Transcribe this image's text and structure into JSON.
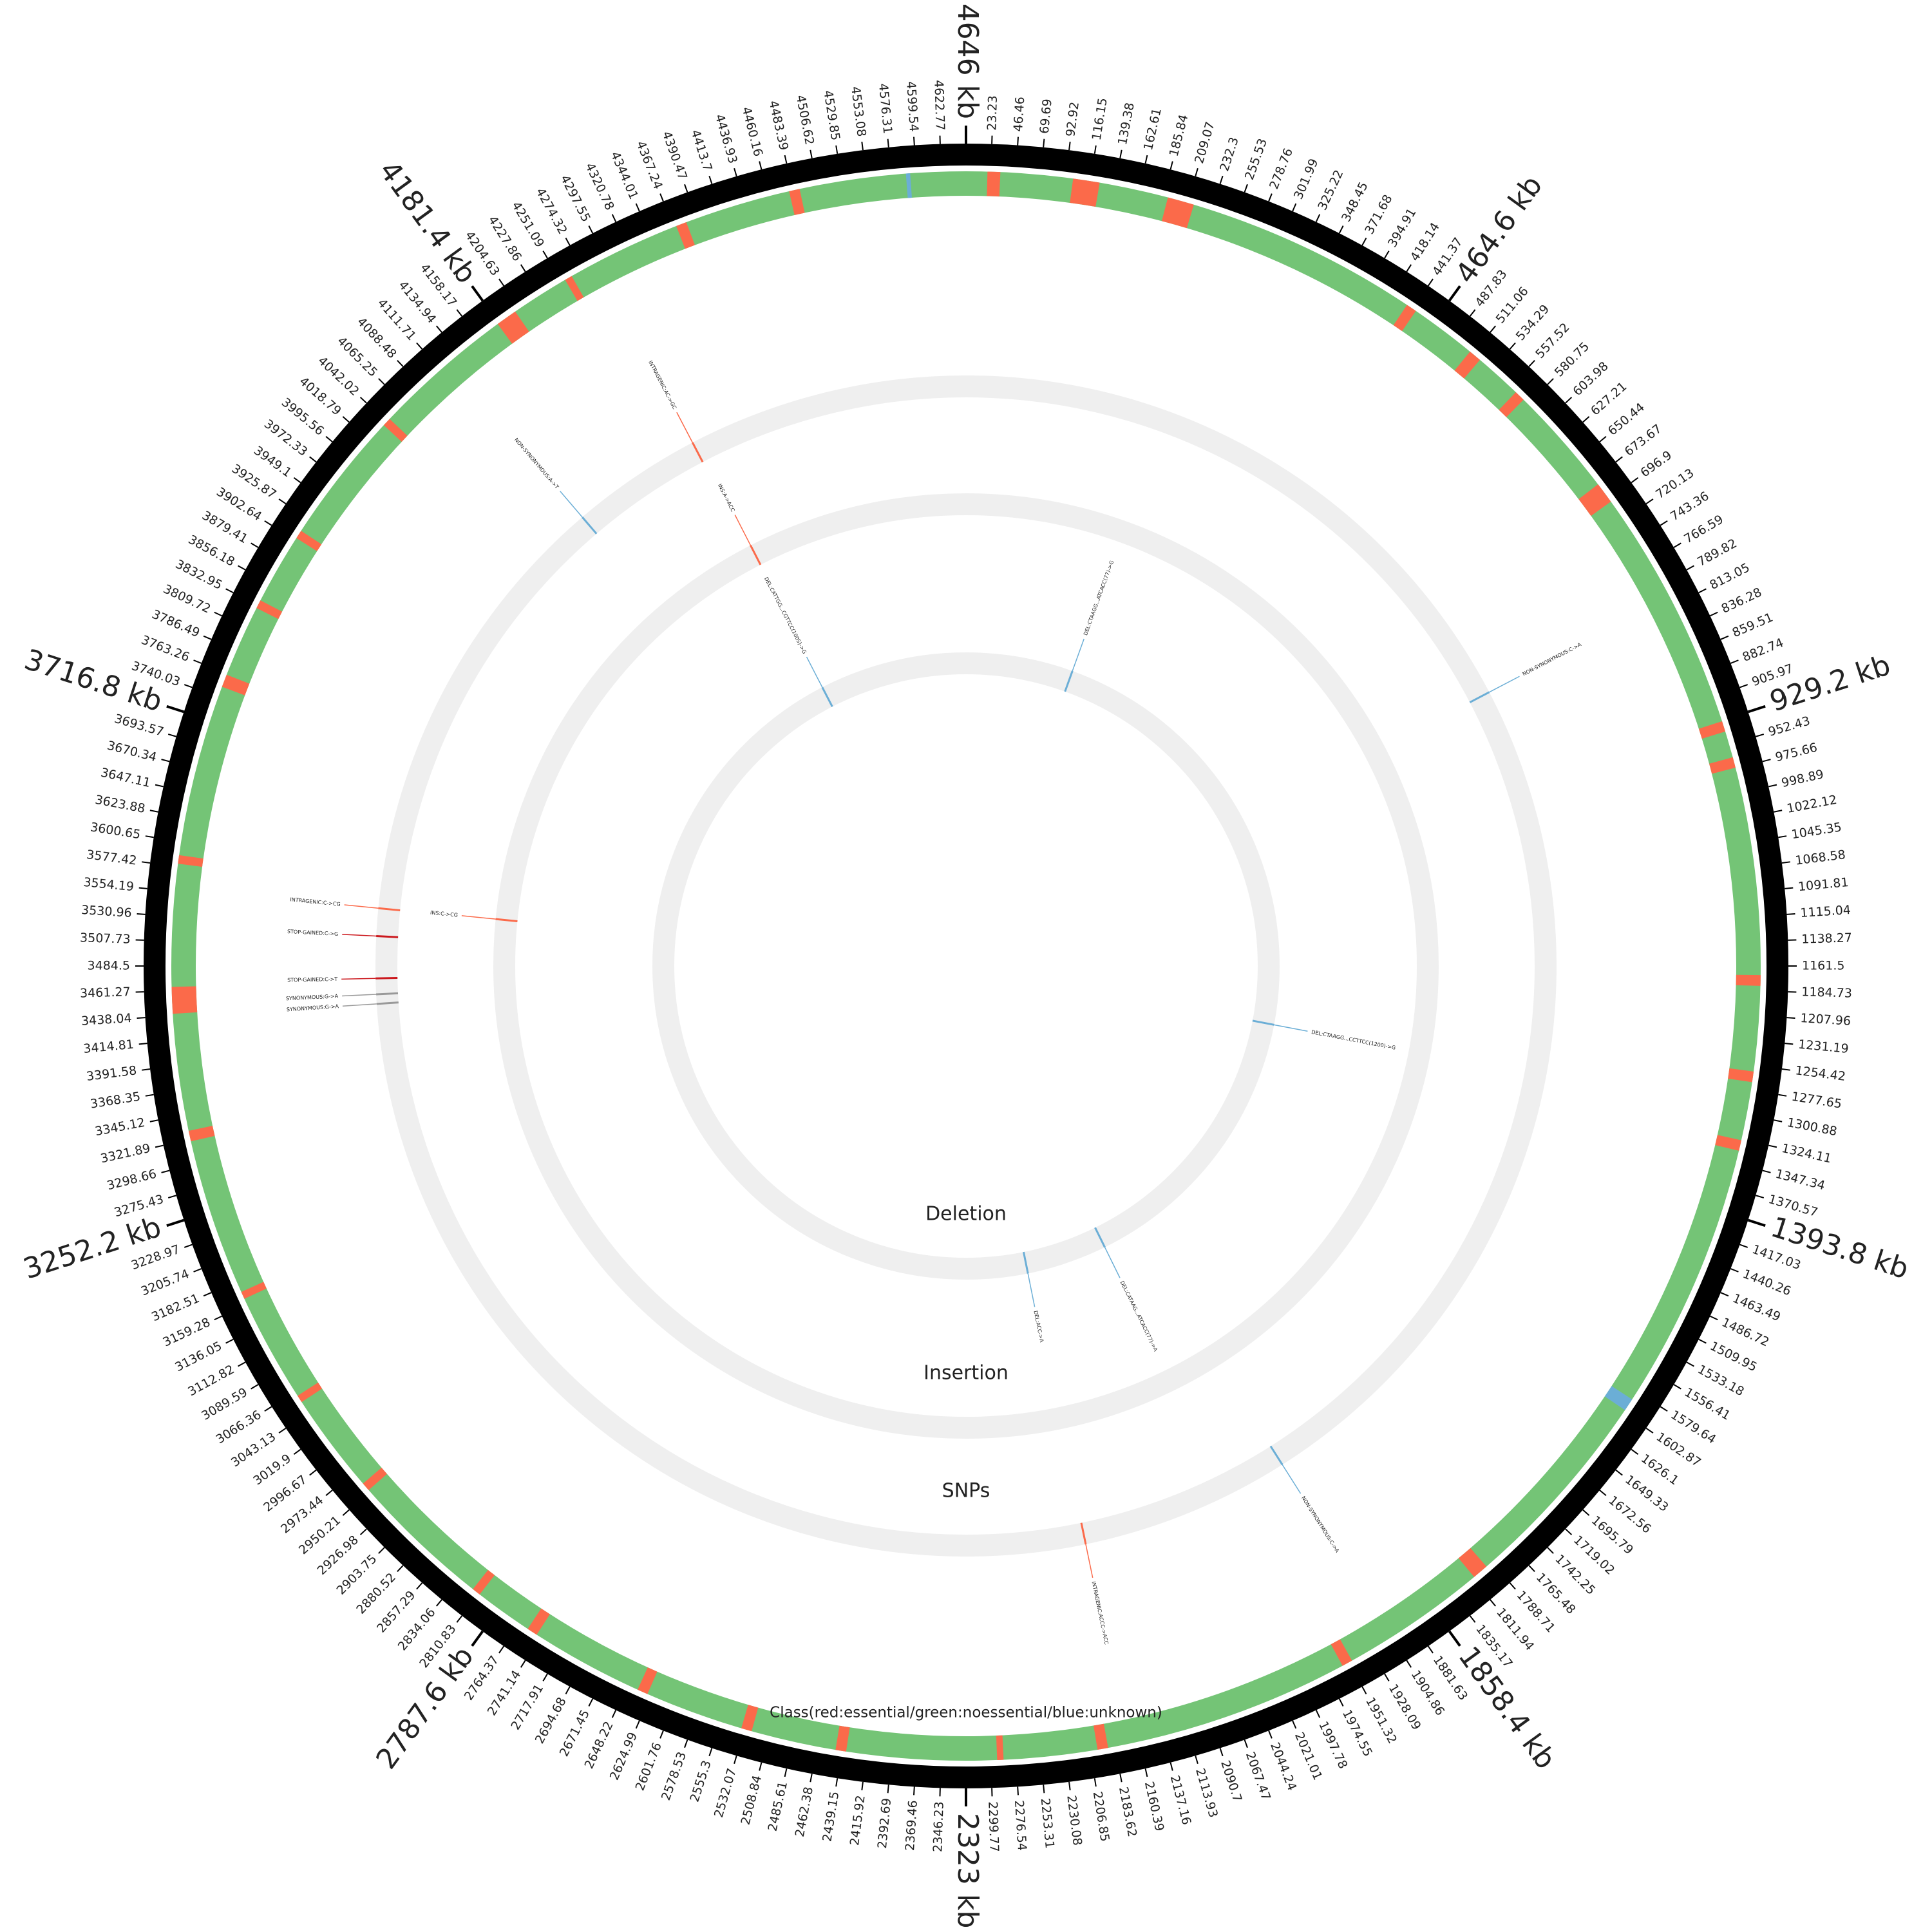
{
  "chart_data": {
    "type": "circular",
    "xlim": [
      0,
      4646
    ],
    "xticks": [
      23.23,
      46.46,
      69.69,
      92.92,
      116.15,
      139.38,
      162.61,
      185.84,
      209.07,
      232.3,
      255.53,
      278.76,
      301.99,
      325.22,
      348.45,
      371.68,
      394.91,
      418.14,
      441.37,
      {
        "value": 464.6,
        "label": "464.6 kb"
      },
      487.83,
      511.06,
      534.29,
      557.52,
      580.75,
      603.98,
      627.21,
      650.44,
      673.67,
      696.9,
      720.13,
      743.36,
      766.59,
      789.82,
      813.05,
      836.28,
      859.51,
      882.74,
      905.97,
      {
        "value": 929.2,
        "label": "929.2 kb"
      },
      952.43,
      975.66,
      998.89,
      1022.12,
      1045.35,
      1068.58,
      1091.81,
      1115.04,
      1138.27,
      1161.5,
      1184.73,
      1207.96,
      1231.19,
      1254.42,
      1277.65,
      1300.88,
      1324.11,
      1347.34,
      1370.57,
      {
        "value": 1393.8,
        "label": "1393.8 kb"
      },
      1417.03,
      1440.26,
      1463.49,
      1486.72,
      1509.95,
      1533.18,
      1556.41,
      1579.64,
      1602.87,
      1626.1,
      1649.33,
      1672.56,
      1695.79,
      1719.02,
      1742.25,
      1765.48,
      1788.71,
      1811.94,
      1835.17,
      {
        "value": 1858.4,
        "label": "1858.4 kb"
      },
      1881.63,
      1904.86,
      1928.09,
      1951.32,
      1974.55,
      1997.78,
      2021.01,
      2044.24,
      2067.47,
      2090.7,
      2113.93,
      2137.16,
      2160.39,
      2183.62,
      2206.85,
      2230.08,
      2253.31,
      2276.54,
      2299.77,
      {
        "value": 2323,
        "label": "2323 kb"
      },
      2346.23,
      2369.46,
      2392.69,
      2415.92,
      2439.15,
      2462.38,
      2485.61,
      2508.84,
      2532.07,
      2555.3,
      2578.53,
      2601.76,
      2624.99,
      2648.22,
      2671.45,
      2694.68,
      2717.91,
      2741.14,
      2764.37,
      {
        "value": 2787.6,
        "label": "2787.6 kb"
      },
      2810.83,
      2834.06,
      2857.29,
      2880.52,
      2903.75,
      2926.98,
      2950.21,
      2973.44,
      2996.67,
      3019.9,
      3043.13,
      3066.36,
      3089.59,
      3112.82,
      3136.05,
      3159.28,
      3182.51,
      3205.74,
      3228.97,
      {
        "value": 3252.2,
        "label": "3252.2 kb"
      },
      3275.43,
      3298.66,
      3321.89,
      3345.12,
      3368.35,
      3391.58,
      3414.81,
      3438.04,
      3461.27,
      3484.5,
      3507.73,
      3530.96,
      3554.19,
      3577.42,
      3600.65,
      3623.88,
      3647.11,
      3670.34,
      3693.57,
      {
        "value": 3716.8,
        "label": "3716.8 kb"
      },
      3740.03,
      3763.26,
      3786.49,
      3809.72,
      3832.95,
      3856.18,
      3879.41,
      3902.64,
      3925.87,
      3949.1,
      3972.33,
      3995.56,
      4018.79,
      4042.02,
      4065.25,
      4088.48,
      4111.71,
      4134.94,
      4158.17,
      {
        "value": 4181.4,
        "label": "4181.4 kb"
      },
      4204.63,
      4227.86,
      4251.09,
      4274.32,
      4297.55,
      4320.78,
      4344.01,
      4367.24,
      4390.47,
      4413.7,
      4436.93,
      4460.16,
      4483.39,
      4506.62,
      4529.85,
      4553.08,
      4576.31,
      4599.54,
      4622.77,
      {
        "value": 4646,
        "label": "4646 kb"
      }
    ],
    "tracks": [
      {
        "type": "genes",
        "label": "Class(red:essential/green:noessential/blue:unknown)",
        "colors": {
          "essential": "#fb6a4a",
          "noessential": "#74c476",
          "unknown": "#6baed6"
        },
        "essential": [
          [
            20,
            32
          ],
          [
            100,
            125
          ],
          [
            190,
            215
          ],
          [
            435,
            445
          ],
          [
            508,
            520
          ],
          [
            565,
            575
          ],
          [
            680,
            700
          ],
          [
            930,
            940
          ],
          [
            965,
            975
          ],
          [
            1170,
            1180
          ],
          [
            1260,
            1270
          ],
          [
            1325,
            1335
          ],
          [
            1795,
            1810
          ],
          [
            1948,
            1958
          ],
          [
            2190,
            2200
          ],
          [
            2288,
            2294
          ],
          [
            2435,
            2445
          ],
          [
            2525,
            2535
          ],
          [
            2628,
            2638
          ],
          [
            2745,
            2755
          ],
          [
            2810,
            2818
          ],
          [
            2952,
            2960
          ],
          [
            3055,
            3062
          ],
          [
            3165,
            3172
          ],
          [
            3320,
            3330
          ],
          [
            3440,
            3465
          ],
          [
            3580,
            3588
          ],
          [
            3750,
            3762
          ],
          [
            3830,
            3838
          ],
          [
            3905,
            3913
          ],
          [
            4038,
            4046
          ],
          [
            4180,
            4200
          ],
          [
            4255,
            4262
          ],
          [
            4370,
            4380
          ],
          [
            4480,
            4490
          ]
        ],
        "unknown": [
          [
            1588,
            1600
          ],
          [
            4590,
            4594
          ]
        ]
      },
      {
        "type": "variants",
        "label": "SNPs",
        "ring_color": "#efefef",
        "variants": [
          {
            "position": 805,
            "label": "NON-SYNONYMOUS:C->A",
            "color": "#6baed6"
          },
          {
            "position": 1905,
            "label": "NON-SYNONYMOUS:C->A",
            "color": "#6baed6"
          },
          {
            "position": 2172,
            "label": "INTRAGENIC:ACCC->ACC",
            "color": "#fb6a4a"
          },
          {
            "position": 3437,
            "label": "SYNONYMOUS:G->A",
            "color": "#999999"
          },
          {
            "position": 3449,
            "label": "SYNONYMOUS:G->A",
            "color": "#999999"
          },
          {
            "position": 3469,
            "label": "STOP-GAINED:C->T",
            "color": "#cb181d"
          },
          {
            "position": 3522,
            "label": "STOP-GAINED:C->G",
            "color": "#cb181d"
          },
          {
            "position": 3557,
            "label": "INTRAGENIC:C->CG",
            "color": "#fb6a4a"
          },
          {
            "position": 4123,
            "label": "NON-SYNONYMOUS:A->T",
            "color": "#6baed6"
          },
          {
            "position": 4290,
            "label": "INTRAGENIC:AC->GC",
            "color": "#fb6a4a"
          }
        ]
      },
      {
        "type": "variants",
        "label": "Insertion",
        "ring_color": "#efefef",
        "variants": [
          {
            "position": 3558,
            "label": "INS:C->CG",
            "color": "#fb6a4a"
          },
          {
            "position": 4296,
            "label": "INS:A->ACC",
            "color": "#fb6a4a"
          }
        ]
      },
      {
        "type": "variants",
        "label": "Deletion",
        "ring_color": "#efefef",
        "variants": [
          {
            "position": 256,
            "label": "DEL:CTAAGG...ATCACC(77)->G",
            "color": "#6baed6"
          },
          {
            "position": 1301,
            "label": "DEL:CTAAGG...CCTTCC(1200)->G",
            "color": "#6baed6"
          },
          {
            "position": 1984,
            "label": "DEL:CATAAG...ATCACC(77)->A",
            "color": "#6baed6"
          },
          {
            "position": 2176,
            "label": "DEL:ACC->A",
            "color": "#6baed6"
          },
          {
            "position": 4294,
            "label": "DEL:CATTGG...CGTTCC(1005)->G",
            "color": "#6baed6"
          }
        ]
      }
    ]
  }
}
